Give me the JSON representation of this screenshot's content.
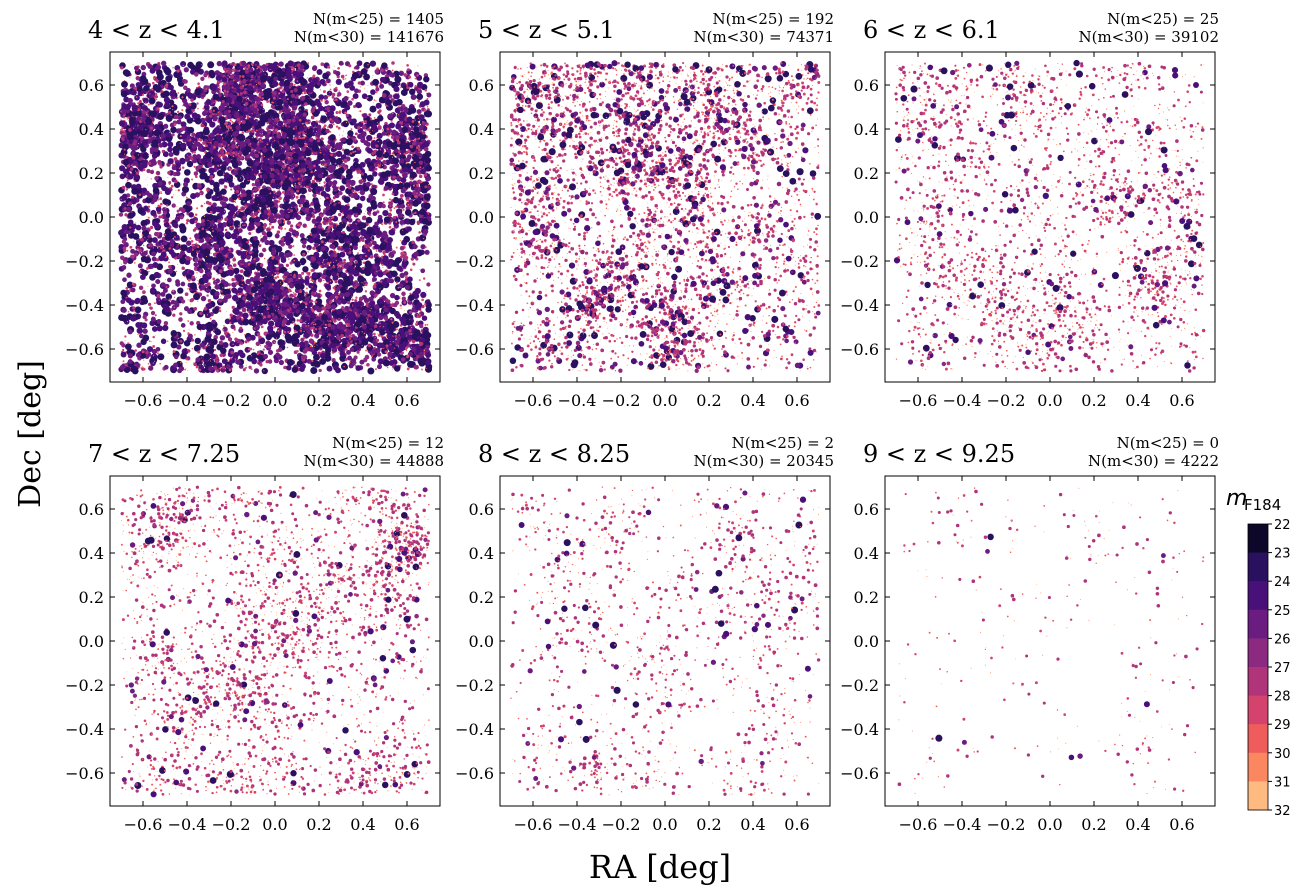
{
  "chart_data": {
    "type": "scatter",
    "xlabel": "RA [deg]",
    "ylabel": "Dec [deg]",
    "xlim": [
      -0.75,
      0.75
    ],
    "ylim": [
      -0.75,
      0.75
    ],
    "xticks": [
      -0.6,
      -0.4,
      -0.2,
      0.0,
      0.2,
      0.4,
      0.6
    ],
    "xtick_labels": [
      "−0.6",
      "−0.4",
      "−0.2",
      "0.0",
      "0.2",
      "0.4",
      "0.6"
    ],
    "yticks": [
      0.6,
      0.4,
      0.2,
      0.0,
      -0.2,
      -0.4,
      -0.6
    ],
    "ytick_labels": [
      "0.6",
      "0.4",
      "0.2",
      "0.0",
      "−0.2",
      "−0.4",
      "−0.6"
    ],
    "grid": false,
    "colorbar": {
      "label": "m",
      "label_sub": "F184",
      "min": 22,
      "max": 32,
      "ticks": [
        22,
        23,
        24,
        25,
        26,
        27,
        28,
        29,
        30,
        31,
        32
      ],
      "colors": [
        "#0d0829",
        "#2a1160",
        "#4a107a",
        "#6a1c81",
        "#8c2981",
        "#b0347a",
        "#d3436e",
        "#ee5d5b",
        "#fb8761",
        "#feba80",
        "#fcfdbf"
      ]
    },
    "panels": [
      {
        "title": "4 < z < 4.1",
        "n25_label": "N(m<25) = 1405",
        "n30_label": "N(m<30) = 141676",
        "n25": 1405,
        "n30": 141676
      },
      {
        "title": "5 < z < 5.1",
        "n25_label": "N(m<25) = 192",
        "n30_label": "N(m<30) = 74371",
        "n25": 192,
        "n30": 74371
      },
      {
        "title": "6 < z < 6.1",
        "n25_label": "N(m<25) = 25",
        "n30_label": "N(m<30) = 39102",
        "n25": 25,
        "n30": 39102
      },
      {
        "title": "7 < z < 7.25",
        "n25_label": "N(m<25) = 12",
        "n30_label": "N(m<30) = 44888",
        "n25": 12,
        "n30": 44888
      },
      {
        "title": "8 < z < 8.25",
        "n25_label": "N(m<25) = 2",
        "n30_label": "N(m<30) = 20345",
        "n25": 2,
        "n30": 20345
      },
      {
        "title": "9 < z < 9.25",
        "n25_label": "N(m<25) = 0",
        "n30_label": "N(m<30) = 4222",
        "n25": 0,
        "n30": 4222
      }
    ]
  }
}
